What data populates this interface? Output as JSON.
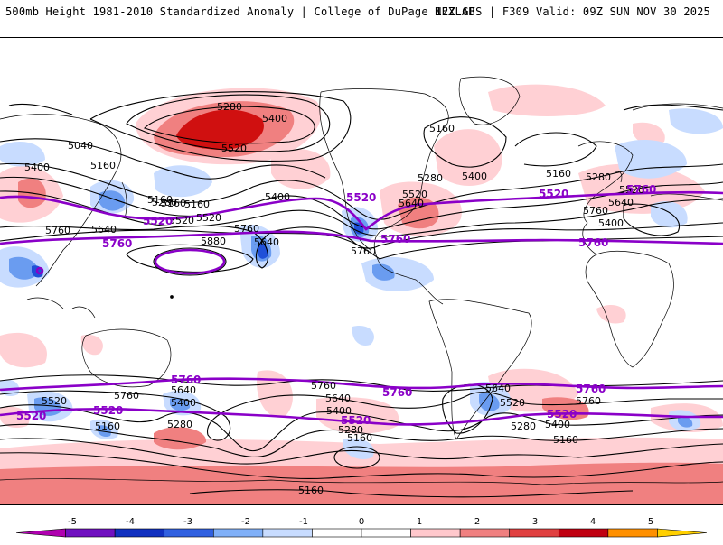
{
  "header": {
    "left": "500mb Height 1981-2010 Standardized Anomaly | College of DuPage NEXLAB",
    "right": "12Z GFS | F309 Valid: 09Z SUN NOV 30 2025"
  },
  "colors": {
    "contour": "#000000",
    "highlight": "#8a00c8",
    "anomaly_neg_1": "#c8dcff",
    "anomaly_neg_2": "#6a9cf0",
    "anomaly_neg_3": "#2050d8",
    "anomaly_pos_1": "#ffd0d4",
    "anomaly_pos_2": "#f08080",
    "anomaly_pos_3": "#d01010"
  },
  "contour_labels": [
    {
      "id": "c1",
      "text": "5280"
    },
    {
      "id": "c2",
      "text": "5400"
    },
    {
      "id": "c3",
      "text": "5520"
    },
    {
      "id": "c4",
      "text": "5040"
    },
    {
      "id": "c5",
      "text": "5160"
    },
    {
      "id": "c6",
      "text": "5400"
    },
    {
      "id": "c7",
      "text": "5160"
    },
    {
      "id": "c8",
      "text": "5280"
    },
    {
      "id": "c9",
      "text": "5160"
    },
    {
      "id": "c10",
      "text": "5520"
    },
    {
      "id": "c11",
      "text": "5400"
    },
    {
      "id": "c12",
      "text": "5640"
    },
    {
      "id": "c13",
      "text": "5760"
    },
    {
      "id": "c14",
      "text": "5760"
    },
    {
      "id": "c15",
      "text": "5880"
    },
    {
      "id": "c16",
      "text": "5640"
    },
    {
      "id": "c17",
      "text": "5760"
    },
    {
      "id": "c18",
      "text": "5160"
    },
    {
      "id": "c19",
      "text": "5280"
    },
    {
      "id": "c20",
      "text": "5400"
    },
    {
      "id": "c21",
      "text": "5520"
    },
    {
      "id": "c22",
      "text": "5640"
    },
    {
      "id": "c23",
      "text": "5160"
    },
    {
      "id": "c24",
      "text": "5280"
    },
    {
      "id": "c25",
      "text": "5520"
    },
    {
      "id": "c26",
      "text": "5640"
    },
    {
      "id": "c27",
      "text": "5760"
    },
    {
      "id": "c28",
      "text": "5400"
    },
    {
      "id": "c29",
      "text": "5520"
    },
    {
      "id": "c30",
      "text": "5160"
    },
    {
      "id": "c31",
      "text": "5760"
    },
    {
      "id": "c32",
      "text": "5640"
    },
    {
      "id": "c33",
      "text": "5400"
    },
    {
      "id": "c34",
      "text": "5280"
    },
    {
      "id": "c35",
      "text": "5760"
    },
    {
      "id": "c36",
      "text": "5640"
    },
    {
      "id": "c37",
      "text": "5400"
    },
    {
      "id": "c38",
      "text": "5280"
    },
    {
      "id": "c39",
      "text": "5160"
    },
    {
      "id": "c40",
      "text": "5520"
    },
    {
      "id": "c41",
      "text": "5160"
    },
    {
      "id": "c42",
      "text": "5640"
    },
    {
      "id": "c43",
      "text": "5520"
    },
    {
      "id": "c44",
      "text": "5760"
    },
    {
      "id": "c45",
      "text": "5280"
    },
    {
      "id": "c46",
      "text": "5400"
    },
    {
      "id": "c47",
      "text": "5160"
    },
    {
      "id": "c48",
      "text": "5160"
    }
  ],
  "highlight_labels": [
    {
      "id": "p1",
      "text": "5520"
    },
    {
      "id": "p2",
      "text": "5760"
    },
    {
      "id": "p3",
      "text": "5520"
    },
    {
      "id": "p4",
      "text": "5760"
    },
    {
      "id": "p5",
      "text": "5520"
    },
    {
      "id": "p6",
      "text": "5760"
    },
    {
      "id": "p7",
      "text": "5760"
    },
    {
      "id": "p8",
      "text": "5760"
    },
    {
      "id": "p9",
      "text": "5520"
    },
    {
      "id": "p10",
      "text": "5520"
    },
    {
      "id": "p11",
      "text": "5760"
    },
    {
      "id": "p12",
      "text": "5520"
    },
    {
      "id": "p13",
      "text": "5760"
    },
    {
      "id": "p14",
      "text": "5520"
    }
  ],
  "colorbar": {
    "ticks": [
      "-5",
      "-4",
      "-3",
      "-2",
      "-1",
      "0",
      "1",
      "2",
      "3",
      "4",
      "5"
    ],
    "colors": [
      "#b000b0",
      "#7010c0",
      "#1030c0",
      "#3060e0",
      "#80b0f8",
      "#c8dcff",
      "#ffffff",
      "#ffffff",
      "#ffc8cc",
      "#f08080",
      "#e04040",
      "#c00010",
      "#ff9000",
      "#ffd000"
    ]
  }
}
